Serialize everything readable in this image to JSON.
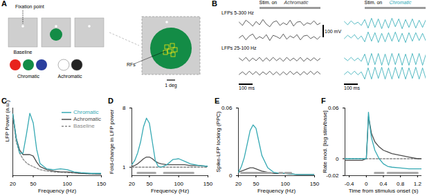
{
  "panel_labels": [
    "A",
    "B",
    "C",
    "D",
    "E",
    "F"
  ],
  "diagram": {
    "fixation_label": "Fixation point",
    "baseline_label": "Baseline",
    "chromatic_label": "Chromatic",
    "chromatic_colors": [
      "#e8231d",
      "#138c46",
      "#2b3f9e"
    ],
    "achromatic_label": "Achromatic",
    "achromatic_colors": [
      "#ffffff",
      "#222222"
    ],
    "rf_label": "RFs",
    "scale_label": "1 deg"
  },
  "traces": {
    "type": "line",
    "top_label": "LFPs 5-300 Hz",
    "bottom_label": "LFPs 25-100 Hz",
    "stim_label": "Stim. on",
    "stim_onset": 6,
    "voltage_scale": "100 mV",
    "time_scale": "100 ms",
    "tick_labels": false,
    "xlim": [
      0,
      24
    ],
    "ylim": [
      -1,
      1
    ],
    "x": [
      0,
      1,
      2,
      3,
      4,
      5,
      6,
      7,
      8,
      9,
      10,
      11,
      12,
      13,
      14,
      15,
      16,
      17,
      18,
      19,
      20,
      21,
      22,
      23,
      24
    ],
    "conditions": [
      {
        "name": "Achromatic",
        "color": "#333333",
        "series": [
          [
            0.2,
            -0.3,
            0.5,
            0.1,
            -0.4,
            0.3,
            -0.2,
            0.6,
            -0.1,
            -0.5,
            0.2,
            0.4,
            -0.3,
            0.1,
            -0.2,
            0.5,
            -0.4,
            0.2,
            0.3,
            -0.3,
            0.1,
            -0.1,
            0.4,
            -0.2,
            0.1
          ],
          [
            -0.1,
            0.3,
            -0.4,
            0.2,
            0.5,
            -0.3,
            0.1,
            -0.2,
            0.4,
            -0.5,
            0.3,
            0.1,
            -0.2,
            0.5,
            -0.3,
            0.2,
            -0.1,
            0.4,
            -0.4,
            0.2,
            0.3,
            -0.2,
            0.1,
            -0.3,
            0.2
          ],
          [
            0.2,
            -0.2,
            0.3,
            -0.3,
            0.2,
            -0.2,
            0.3,
            -0.3,
            0.25,
            -0.25,
            0.3,
            -0.2,
            0.2,
            -0.3,
            0.3,
            -0.2,
            0.2,
            -0.25,
            0.3,
            -0.3,
            0.2,
            -0.2,
            0.25,
            -0.2,
            0.2
          ],
          [
            -0.2,
            0.2,
            -0.25,
            0.3,
            -0.2,
            0.25,
            -0.3,
            0.2,
            -0.2,
            0.3,
            -0.25,
            0.2,
            -0.3,
            0.2,
            -0.25,
            0.3,
            -0.2,
            0.2,
            -0.3,
            0.25,
            -0.2,
            0.3,
            -0.2,
            0.25,
            -0.2
          ]
        ]
      },
      {
        "name": "Chromatic",
        "color": "#2aa8b4",
        "series": [
          [
            0.3,
            -0.2,
            0.4,
            -0.1,
            0.2,
            -0.3,
            0.6,
            -0.7,
            0.8,
            -0.6,
            0.7,
            -0.8,
            0.6,
            -0.7,
            0.8,
            -0.5,
            0.7,
            -0.8,
            0.6,
            -0.6,
            0.7,
            -0.7,
            0.5,
            -0.6,
            0.6
          ],
          [
            -0.2,
            0.3,
            -0.1,
            0.4,
            -0.3,
            0.2,
            -0.7,
            0.8,
            -0.6,
            0.7,
            -0.8,
            0.6,
            -0.7,
            0.7,
            -0.6,
            0.8,
            -0.7,
            0.6,
            -0.8,
            0.7,
            -0.6,
            0.7,
            -0.5,
            0.6,
            -0.6
          ],
          [
            0.2,
            -0.2,
            0.3,
            -0.2,
            0.2,
            -0.3,
            0.8,
            -0.9,
            0.9,
            -0.8,
            0.9,
            -0.9,
            0.8,
            -0.9,
            0.9,
            -0.8,
            0.9,
            -0.9,
            0.8,
            -0.9,
            0.9,
            -0.8,
            0.9,
            -0.9,
            0.8
          ],
          [
            -0.2,
            0.25,
            -0.2,
            0.3,
            -0.25,
            0.2,
            -0.9,
            0.8,
            -0.9,
            0.9,
            -0.8,
            0.9,
            -0.9,
            0.8,
            -0.9,
            0.9,
            -0.8,
            0.9,
            -0.9,
            0.8,
            -0.8,
            0.9,
            -0.9,
            0.8,
            -0.9
          ]
        ]
      }
    ]
  },
  "chart_data": [
    {
      "type": "line",
      "ylabel": "LFP Power (a.u.)",
      "xlabel": "Frequency (Hz)",
      "x": [
        20,
        25,
        30,
        35,
        40,
        45,
        50,
        55,
        60,
        70,
        80,
        90,
        100,
        110,
        120,
        135,
        150
      ],
      "xlim": [
        20,
        150
      ],
      "xticks": [
        20,
        50,
        100,
        150
      ],
      "ylim": [
        0,
        0.9
      ],
      "tick_labels": "x",
      "legend": "top-right",
      "series": [
        {
          "name": "Chromatic",
          "color": "#35a9b3",
          "values": [
            0.82,
            0.5,
            0.3,
            0.3,
            0.55,
            0.83,
            0.7,
            0.35,
            0.16,
            0.09,
            0.08,
            0.09,
            0.08,
            0.05,
            0.04,
            0.03,
            0.03
          ]
        },
        {
          "name": "Achromatic",
          "color": "#4d4d4d",
          "values": [
            0.82,
            0.5,
            0.34,
            0.28,
            0.28,
            0.28,
            0.26,
            0.18,
            0.12,
            0.08,
            0.06,
            0.05,
            0.05,
            0.04,
            0.03,
            0.025,
            0.02
          ]
        },
        {
          "name": "Baseline",
          "color": "#888888",
          "line_style": "dashed",
          "values": [
            0.8,
            0.45,
            0.3,
            0.22,
            0.17,
            0.14,
            0.12,
            0.1,
            0.08,
            0.06,
            0.05,
            0.045,
            0.04,
            0.035,
            0.03,
            0.025,
            0.02
          ]
        }
      ]
    },
    {
      "type": "line",
      "ylabel": "Fold-change in LFP power",
      "xlabel": "Frequency (Hz)",
      "x": [
        20,
        25,
        30,
        35,
        40,
        45,
        50,
        55,
        60,
        65,
        70,
        80,
        90,
        100,
        110,
        120,
        135,
        150
      ],
      "xlim": [
        20,
        150
      ],
      "xticks": [
        20,
        50,
        100,
        150
      ],
      "ylim": [
        0,
        8
      ],
      "yticks": [
        1,
        8
      ],
      "significant_ranges": [
        [
          30,
          60
        ],
        [
          75,
          125
        ]
      ],
      "series": [
        {
          "name": "Chromatic",
          "color": "#35a9b3",
          "values": [
            1.3,
            1.8,
            2.7,
            4.0,
            5.8,
            6.8,
            6.2,
            4.0,
            1.8,
            1.1,
            1.0,
            1.3,
            1.9,
            2.0,
            1.7,
            1.4,
            1.2,
            1.1
          ]
        },
        {
          "name": "Achromatic",
          "color": "#4d4d4d",
          "values": [
            1.1,
            1.2,
            1.4,
            1.7,
            2.0,
            2.2,
            2.2,
            2.0,
            1.7,
            1.5,
            1.4,
            1.3,
            1.3,
            1.3,
            1.3,
            1.2,
            1.2,
            1.1
          ]
        },
        {
          "name": "Baseline",
          "color": "#888888",
          "line_style": "dashed",
          "values": [
            1,
            1,
            1,
            1,
            1,
            1,
            1,
            1,
            1,
            1,
            1,
            1,
            1,
            1,
            1,
            1,
            1,
            1
          ]
        }
      ]
    },
    {
      "type": "line",
      "ylabel": "Spike-LFP locking (PPC)",
      "xlabel": "Frequency (Hz)",
      "x": [
        20,
        25,
        30,
        35,
        40,
        45,
        50,
        55,
        60,
        70,
        80,
        90,
        100,
        120,
        150
      ],
      "xlim": [
        20,
        150
      ],
      "xticks": [
        20,
        50,
        100,
        150
      ],
      "ylim": [
        0,
        0.06
      ],
      "yticks": [
        0,
        0.06
      ],
      "significant_ranges": [
        [
          25,
          75
        ],
        [
          90,
          95
        ],
        [
          100,
          110
        ]
      ],
      "series": [
        {
          "name": "Chromatic",
          "color": "#35a9b3",
          "values": [
            0.003,
            0.008,
            0.016,
            0.028,
            0.04,
            0.045,
            0.042,
            0.03,
            0.018,
            0.007,
            0.003,
            0.002,
            0.002,
            0.001,
            0.001
          ]
        },
        {
          "name": "Achromatic",
          "color": "#4d4d4d",
          "values": [
            0.003,
            0.004,
            0.005,
            0.006,
            0.007,
            0.007,
            0.006,
            0.005,
            0.004,
            0.003,
            0.002,
            0.002,
            0.002,
            0.001,
            0.001
          ]
        }
      ]
    },
    {
      "type": "line",
      "ylabel": "Rate mod. [log stim/base]",
      "xlabel": "Time from stimulus onset (s)",
      "x": [
        -0.5,
        -0.3,
        -0.1,
        0,
        0.03,
        0.05,
        0.08,
        0.12,
        0.2,
        0.3,
        0.4,
        0.5,
        0.6,
        0.8,
        1.0,
        1.2,
        1.3
      ],
      "xlim": [
        -0.5,
        1.3
      ],
      "xticks": [
        -0.4,
        0,
        0.4,
        0.8,
        1.2
      ],
      "ylim": [
        -0.02,
        0.06
      ],
      "yticks": [
        -0.02,
        0,
        0.06
      ],
      "significant_ranges": [
        [
          0.2,
          0.4
        ],
        [
          0.5,
          1.2
        ]
      ],
      "series": [
        {
          "name": "Chromatic",
          "color": "#35a9b3",
          "values": [
            0,
            0,
            0,
            0,
            0.03,
            0.055,
            0.04,
            0.025,
            0.01,
            0.0,
            -0.006,
            -0.009,
            -0.01,
            -0.011,
            -0.012,
            -0.012,
            -0.012
          ]
        },
        {
          "name": "Achromatic",
          "color": "#4d4d4d",
          "values": [
            -0.002,
            -0.002,
            -0.002,
            0,
            0.03,
            0.05,
            0.042,
            0.03,
            0.02,
            0.014,
            0.01,
            0.008,
            0.006,
            0.004,
            0.002,
            0.0,
            0.0
          ]
        },
        {
          "name": "Baseline",
          "color": "#888888",
          "line_style": "dashed",
          "values": [
            0,
            0,
            0,
            0,
            0,
            0,
            0,
            0,
            0,
            0,
            0,
            0,
            0,
            0,
            0,
            0,
            0
          ]
        }
      ]
    }
  ]
}
